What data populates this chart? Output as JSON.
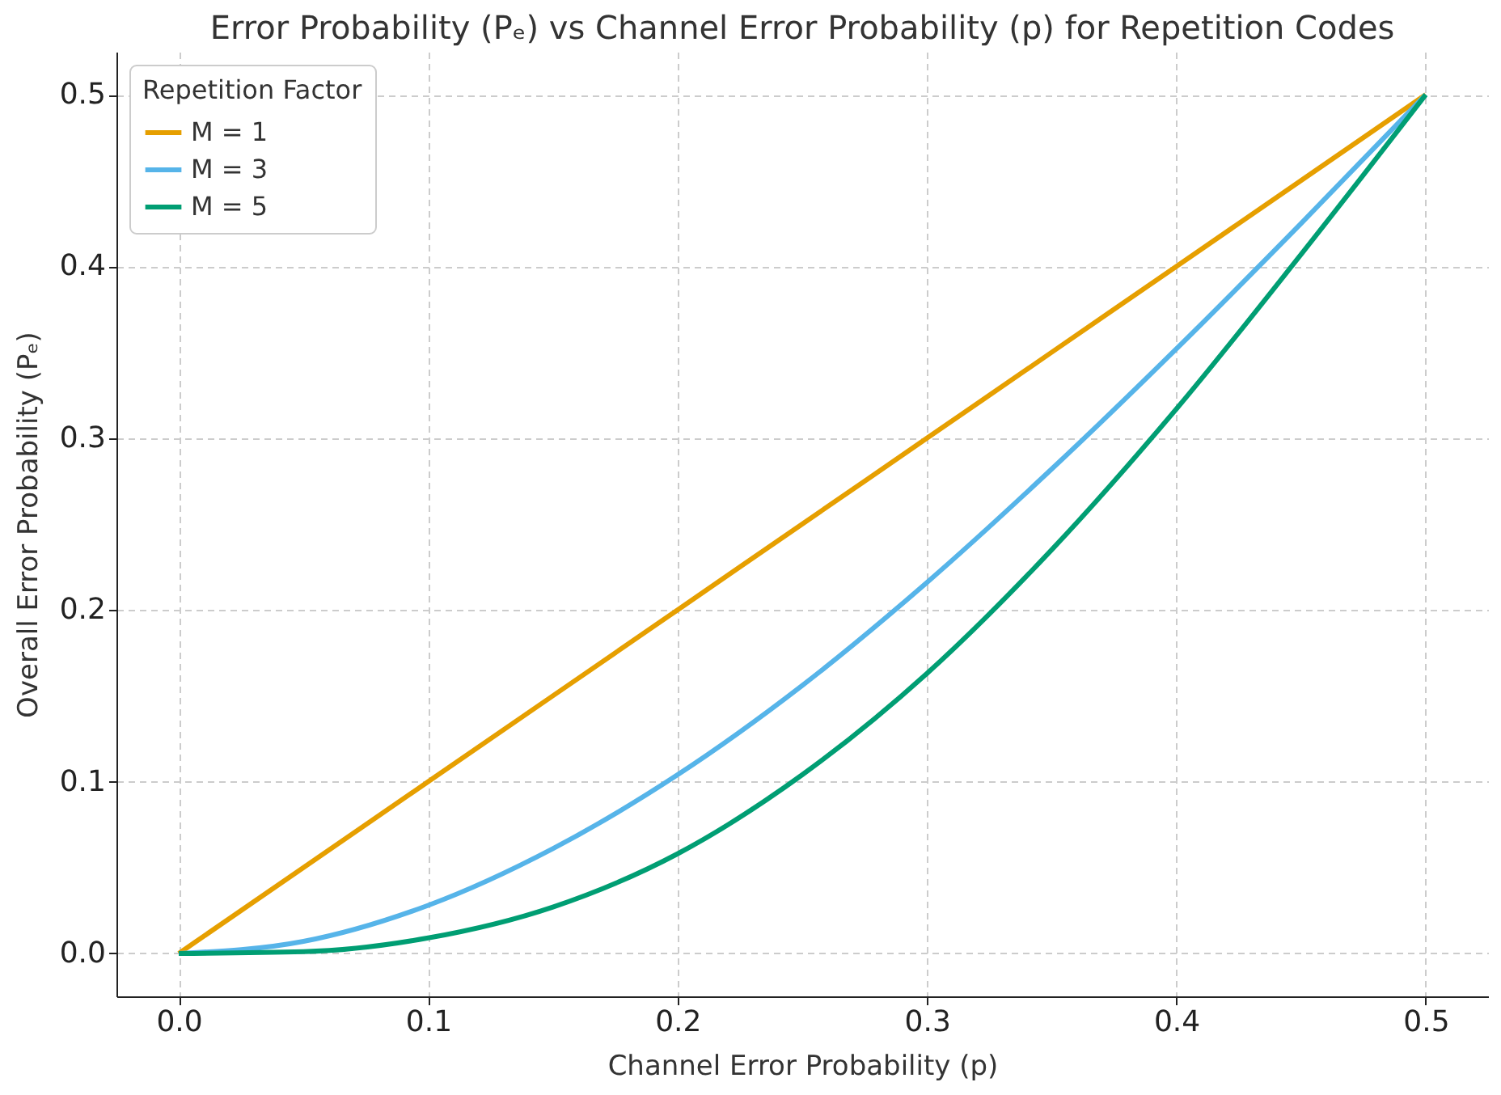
{
  "chart_data": {
    "type": "line",
    "title": "Error Probability (Pₑ) vs Channel Error Probability (p) for Repetition Codes",
    "xlabel": "Channel Error Probability (p)",
    "ylabel": "Overall Error Probability (Pₑ)",
    "legend_title": "Repetition Factor",
    "x": [
      0,
      0.05,
      0.1,
      0.15,
      0.2,
      0.25,
      0.3,
      0.35,
      0.4,
      0.45,
      0.5
    ],
    "series": [
      {
        "name": "M = 1",
        "color": "#e69f00",
        "values": [
          0,
          0.05,
          0.1,
          0.15,
          0.2,
          0.25,
          0.3,
          0.35,
          0.4,
          0.45,
          0.5
        ]
      },
      {
        "name": "M = 3",
        "color": "#56b4e9",
        "values": [
          0,
          0.007,
          0.028,
          0.061,
          0.104,
          0.156,
          0.216,
          0.282,
          0.352,
          0.425,
          0.5
        ]
      },
      {
        "name": "M = 5",
        "color": "#009e73",
        "values": [
          0,
          0.001,
          0.009,
          0.027,
          0.058,
          0.104,
          0.163,
          0.235,
          0.317,
          0.407,
          0.5
        ]
      }
    ],
    "xlim": [
      -0.025,
      0.525
    ],
    "ylim": [
      -0.025,
      0.525
    ],
    "xticks": [
      {
        "value": 0,
        "label": "0.0"
      },
      {
        "value": 0.1,
        "label": "0.1"
      },
      {
        "value": 0.2,
        "label": "0.2"
      },
      {
        "value": 0.3,
        "label": "0.3"
      },
      {
        "value": 0.4,
        "label": "0.4"
      },
      {
        "value": 0.5,
        "label": "0.5"
      }
    ],
    "yticks": [
      {
        "value": 0,
        "label": "0.0"
      },
      {
        "value": 0.1,
        "label": "0.1"
      },
      {
        "value": 0.2,
        "label": "0.2"
      },
      {
        "value": 0.3,
        "label": "0.3"
      },
      {
        "value": 0.4,
        "label": "0.4"
      },
      {
        "value": 0.5,
        "label": "0.5"
      }
    ],
    "grid": true,
    "legend": "top left",
    "marker": "none",
    "line_style": "solid"
  }
}
